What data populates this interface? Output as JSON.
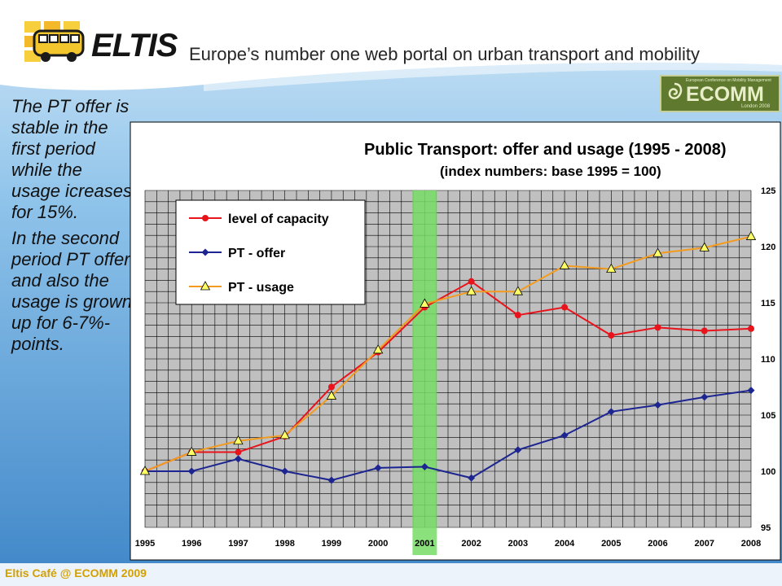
{
  "header": {
    "logo_text": "ELTIS",
    "tagline": "Europe’s number one web portal on urban transport and mobility",
    "ecomm_logo": {
      "word": "ECOMM",
      "small_text": "European Conference on Mobility Management",
      "sub_text": "London 2008"
    }
  },
  "side_text": {
    "paragraph1": "The PT offer is stable in the first period while the usage icreases for 15%.",
    "paragraph2": "In the second period PT offer and also the usage is grown up for 6-7%-points."
  },
  "footer": {
    "text": "Eltis Café @ ECOMM 2009"
  },
  "colors": {
    "level_of_capacity": "#e8141c",
    "pt_offer": "#1c2590",
    "pt_usage": "#f39b1e",
    "usage_marker_fill": "#ffff66",
    "highlight_2001": "#77dd66"
  },
  "chart_data": {
    "type": "line",
    "title": "Public Transport: offer and usage (1995 - 2008)",
    "subtitle": "(index numbers: base 1995 = 100)",
    "x": [
      1995,
      1996,
      1997,
      1998,
      1999,
      2000,
      2001,
      2002,
      2003,
      2004,
      2005,
      2006,
      2007,
      2008
    ],
    "x_tick_labels": [
      "1995",
      "1996",
      "1997",
      "1998",
      "1999",
      "2000",
      "2001",
      "2002",
      "2003",
      "2004",
      "2005",
      "2006",
      "2007",
      "2008"
    ],
    "ylim": [
      95,
      125
    ],
    "y_ticks": [
      95,
      100,
      105,
      110,
      115,
      120,
      125
    ],
    "y_axis_side": "right",
    "grid": true,
    "highlighted_x": 2001,
    "legend_position": "top-left",
    "series": [
      {
        "name": "level of capacity",
        "marker": "circle",
        "values": [
          100,
          101.7,
          101.7,
          103.1,
          107.5,
          110.6,
          114.6,
          116.9,
          113.9,
          114.6,
          112.1,
          112.8,
          112.5,
          112.7
        ]
      },
      {
        "name": "PT - offer",
        "marker": "diamond",
        "values": [
          100,
          100,
          101.1,
          100,
          99.2,
          100.3,
          100.4,
          99.4,
          101.9,
          103.2,
          105.3,
          105.9,
          106.6,
          107.2
        ]
      },
      {
        "name": "PT - usage",
        "marker": "triangle",
        "values": [
          100,
          101.7,
          102.7,
          103.2,
          106.7,
          110.8,
          114.9,
          116.0,
          116.0,
          118.3,
          118.0,
          119.4,
          119.9,
          120.9
        ]
      }
    ]
  }
}
